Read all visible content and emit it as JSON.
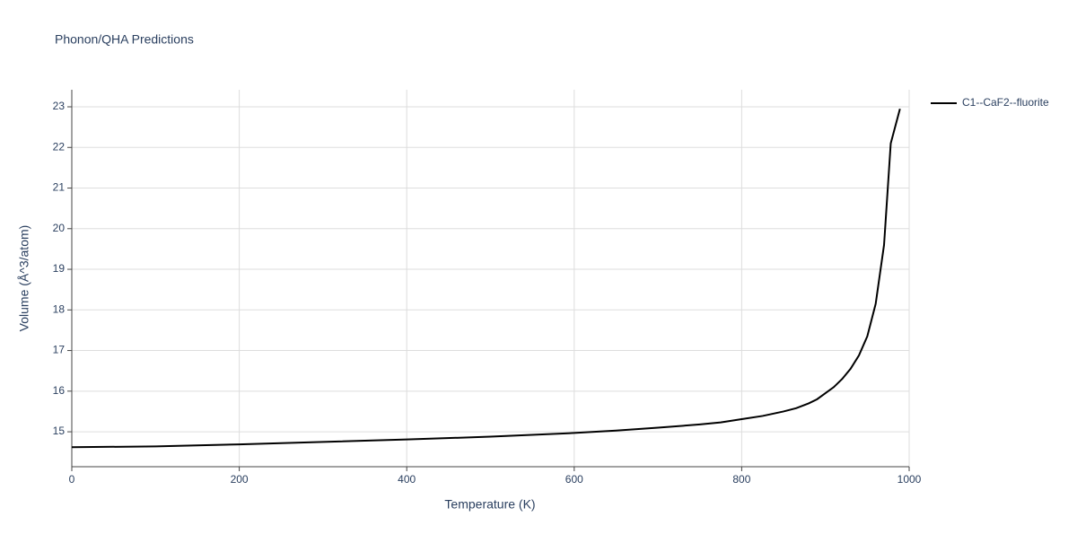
{
  "chart_data": {
    "type": "line",
    "title": "Phonon/QHA Predictions",
    "x_label": "Temperature (K)",
    "y_label": "Volume (Å^3/atom)",
    "x": [
      0,
      100,
      200,
      300,
      400,
      500,
      600,
      650,
      700,
      750,
      775,
      800,
      825,
      850,
      865,
      880,
      890,
      900,
      910,
      920,
      930,
      940,
      950,
      960,
      970,
      978,
      989
    ],
    "series": [
      {
        "name": "C1--CaF2--fluorite",
        "color": "#000000",
        "values": [
          14.62,
          14.64,
          14.69,
          14.75,
          14.81,
          14.88,
          14.97,
          15.03,
          15.1,
          15.18,
          15.23,
          15.31,
          15.39,
          15.5,
          15.58,
          15.7,
          15.8,
          15.95,
          16.1,
          16.3,
          16.55,
          16.88,
          17.35,
          18.15,
          19.6,
          22.1,
          22.95
        ]
      }
    ],
    "xlim": [
      0,
      1000
    ],
    "xticks": [
      0,
      200,
      400,
      600,
      800,
      1000
    ],
    "ylim": [
      14.14,
      23.42
    ],
    "yticks": [
      15,
      16,
      17,
      18,
      19,
      20,
      21,
      22,
      23
    ],
    "grid": true,
    "legend": "right"
  }
}
